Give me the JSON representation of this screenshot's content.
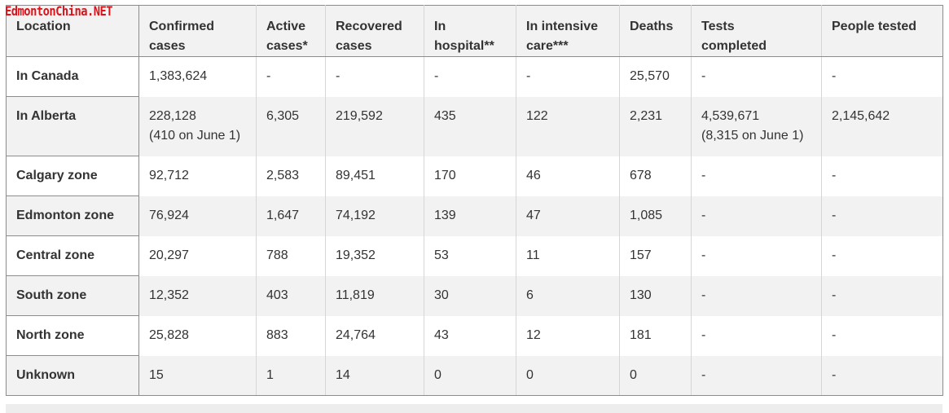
{
  "watermark": "EdmontonChina.NET",
  "table": {
    "headers": [
      [
        "Location"
      ],
      [
        "Confirmed",
        "cases"
      ],
      [
        "Active",
        "cases*"
      ],
      [
        "Recovered",
        "cases"
      ],
      [
        "In",
        "hospital**"
      ],
      [
        "In intensive",
        "care***"
      ],
      [
        "Deaths"
      ],
      [
        "Tests",
        "completed"
      ],
      [
        "People tested"
      ]
    ],
    "rows": [
      {
        "location": "In Canada",
        "confirmed": "1,383,624",
        "confirmed_note": "",
        "active": "-",
        "recovered": "-",
        "hospital": "-",
        "icu": "-",
        "deaths": "25,570",
        "tests": "-",
        "tests_note": "",
        "people": "-"
      },
      {
        "location": "In Alberta",
        "confirmed": "228,128",
        "confirmed_note": "(410 on June 1)",
        "active": "6,305",
        "recovered": "219,592",
        "hospital": "435",
        "icu": "122",
        "deaths": "2,231",
        "tests": "4,539,671",
        "tests_note": "(8,315 on June 1)",
        "people": "2,145,642"
      },
      {
        "location": "Calgary zone",
        "confirmed": "92,712",
        "confirmed_note": "",
        "active": "2,583",
        "recovered": "89,451",
        "hospital": "170",
        "icu": "46",
        "deaths": "678",
        "tests": "-",
        "tests_note": "",
        "people": "-"
      },
      {
        "location": "Edmonton zone",
        "confirmed": "76,924",
        "confirmed_note": "",
        "active": "1,647",
        "recovered": "74,192",
        "hospital": "139",
        "icu": "47",
        "deaths": "1,085",
        "tests": "-",
        "tests_note": "",
        "people": "-"
      },
      {
        "location": "Central zone",
        "confirmed": "20,297",
        "confirmed_note": "",
        "active": "788",
        "recovered": "19,352",
        "hospital": "53",
        "icu": "11",
        "deaths": "157",
        "tests": "-",
        "tests_note": "",
        "people": "-"
      },
      {
        "location": "South zone",
        "confirmed": "12,352",
        "confirmed_note": "",
        "active": "403",
        "recovered": "11,819",
        "hospital": "30",
        "icu": "6",
        "deaths": "130",
        "tests": "-",
        "tests_note": "",
        "people": "-"
      },
      {
        "location": "North zone",
        "confirmed": "25,828",
        "confirmed_note": "",
        "active": "883",
        "recovered": "24,764",
        "hospital": "43",
        "icu": "12",
        "deaths": "181",
        "tests": "-",
        "tests_note": "",
        "people": "-"
      },
      {
        "location": "Unknown",
        "confirmed": "15",
        "confirmed_note": "",
        "active": "1",
        "recovered": "14",
        "hospital": "0",
        "icu": "0",
        "deaths": "0",
        "tests": "-",
        "tests_note": "",
        "people": "-"
      }
    ]
  },
  "colors": {
    "watermark": "#d9141b",
    "row_alt": "#f2f2f2",
    "text": "#333333"
  }
}
